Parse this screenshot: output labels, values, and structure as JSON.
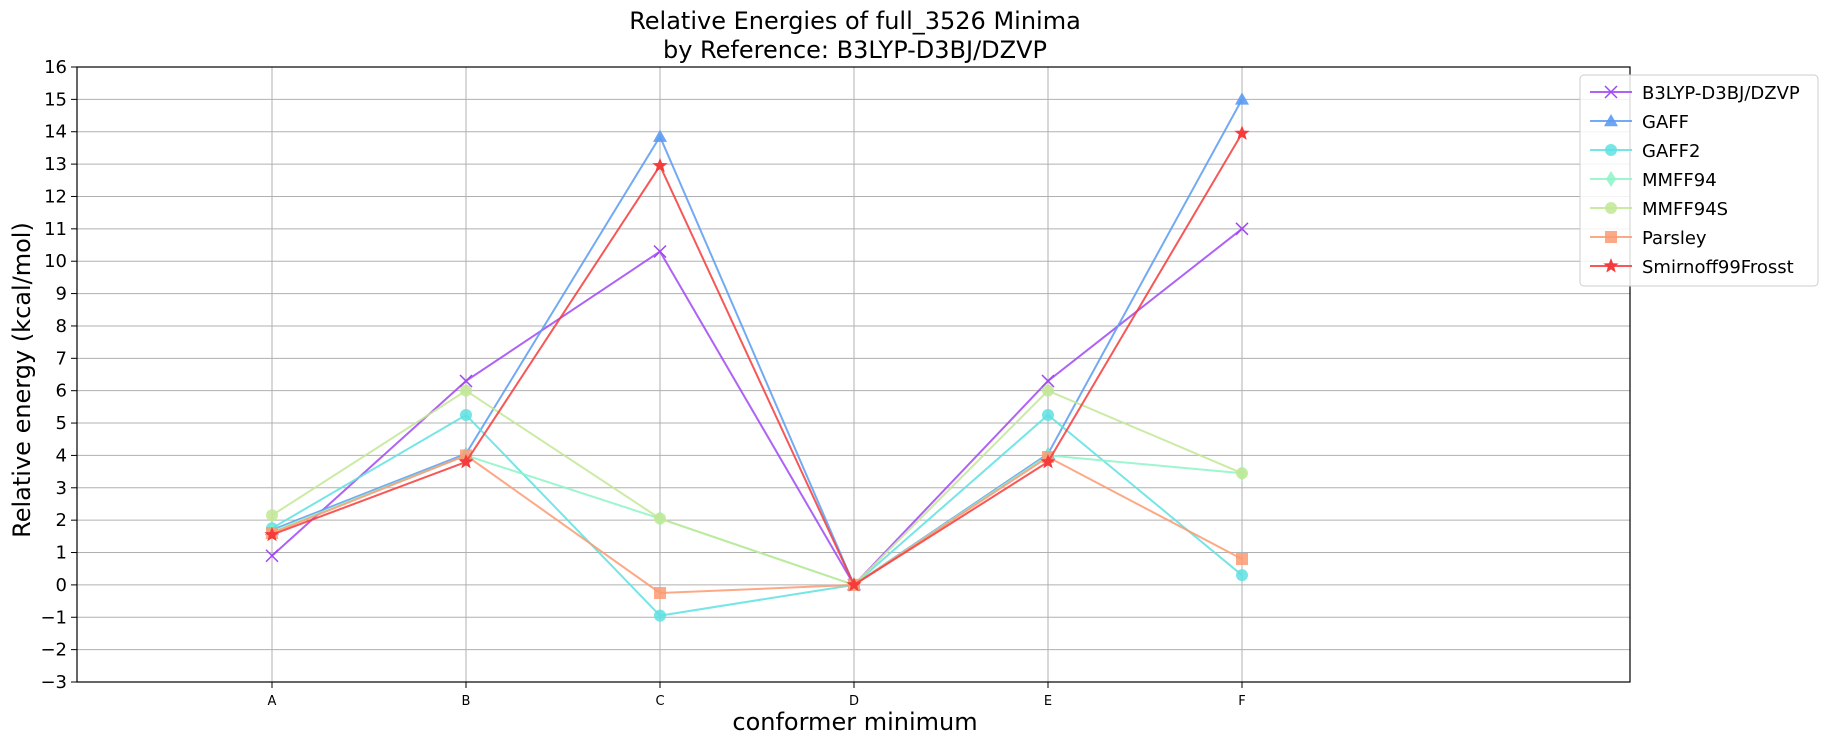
{
  "chart_data": {
    "type": "line",
    "title": "Relative Energies of full_3526 Minima",
    "subtitle": "by Reference: B3LYP-D3BJ/DZVP",
    "xlabel": "conformer minimum",
    "ylabel": "Relative energy (kcal/mol)",
    "categories": [
      "A",
      "B",
      "C",
      "D",
      "E",
      "F"
    ],
    "ylim": [
      -3,
      16
    ],
    "yticks": [
      "-3",
      "-2",
      "-1",
      "0",
      "1",
      "2",
      "3",
      "4",
      "5",
      "6",
      "7",
      "8",
      "9",
      "10",
      "11",
      "12",
      "13",
      "14",
      "15",
      "16"
    ],
    "grid": true,
    "legend_position": "upper-right-outside",
    "series": [
      {
        "name": "B3LYP-D3BJ/DZVP",
        "color": "#a046f5",
        "marker": "x",
        "values": [
          0.9,
          6.3,
          10.3,
          0.0,
          6.3,
          11.0
        ]
      },
      {
        "name": "GAFF",
        "color": "#5b9bf2",
        "marker": "triangle",
        "values": [
          1.7,
          4.05,
          13.85,
          0.0,
          4.05,
          15.0
        ]
      },
      {
        "name": "GAFF2",
        "color": "#5ee0e0",
        "marker": "circle",
        "values": [
          1.75,
          5.25,
          -0.95,
          0.0,
          5.25,
          0.3
        ]
      },
      {
        "name": "MMFF94",
        "color": "#8cf5c4",
        "marker": "diamond",
        "values": [
          1.65,
          4.0,
          2.05,
          0.0,
          4.0,
          3.45
        ]
      },
      {
        "name": "MMFF94S",
        "color": "#c2e895",
        "marker": "circle",
        "values": [
          2.15,
          6.0,
          2.05,
          0.0,
          6.0,
          3.45
        ]
      },
      {
        "name": "Parsley",
        "color": "#fb9a72",
        "marker": "square",
        "values": [
          1.6,
          4.0,
          -0.25,
          0.0,
          3.95,
          0.8
        ]
      },
      {
        "name": "Smirnoff99Frosst",
        "color": "#f53b3b",
        "marker": "star",
        "values": [
          1.55,
          3.8,
          12.95,
          0.0,
          3.8,
          13.95
        ]
      }
    ]
  }
}
